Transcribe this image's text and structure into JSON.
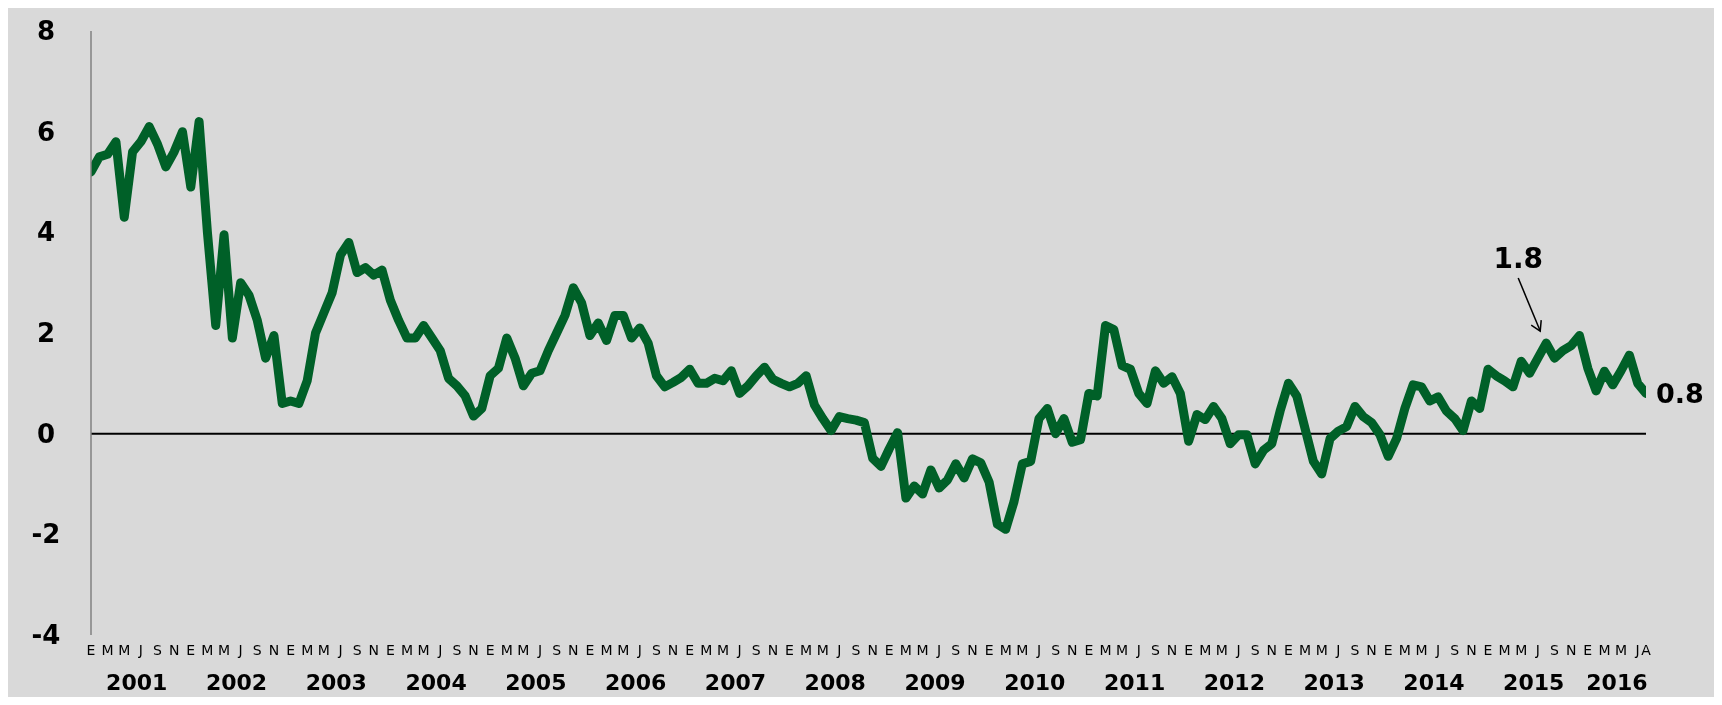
{
  "chart_data": {
    "type": "line",
    "color": "#006028",
    "categories": [
      "E",
      null,
      "M",
      null,
      "M",
      null,
      "J",
      null,
      "S",
      null,
      "N",
      null,
      "E",
      null,
      "M",
      null,
      "M",
      null,
      "J",
      null,
      "S",
      null,
      "N",
      null,
      "E",
      null,
      "M",
      null,
      "M",
      null,
      "J",
      null,
      "S",
      null,
      "N",
      null,
      "E",
      null,
      "M",
      null,
      "M",
      null,
      "J",
      null,
      "S",
      null,
      "N",
      null,
      "E",
      null,
      "M",
      null,
      "M",
      null,
      "J",
      null,
      "S",
      null,
      "N",
      null,
      "E",
      null,
      "M",
      null,
      "M",
      null,
      "J",
      null,
      "S",
      null,
      "N",
      null,
      "E",
      null,
      "M",
      null,
      "M",
      null,
      "J",
      null,
      "S",
      null,
      "N",
      null,
      "E",
      null,
      "M",
      null,
      "M",
      null,
      "J",
      null,
      "S",
      null,
      "N",
      null,
      "E",
      null,
      "M",
      null,
      "M",
      null,
      "J",
      null,
      "S",
      null,
      "N",
      null,
      "E",
      null,
      "M",
      null,
      "M",
      null,
      "J",
      null,
      "S",
      null,
      "N",
      null,
      "E",
      null,
      "M",
      null,
      "M",
      null,
      "J",
      null,
      "S",
      null,
      "N",
      null,
      "E",
      null,
      "M",
      null,
      "M",
      null,
      "J",
      null,
      "S",
      null,
      "N",
      null,
      "E",
      null,
      "M",
      null,
      "M",
      null,
      "J",
      null,
      "S",
      null,
      "N",
      null,
      "E",
      null,
      "M",
      null,
      "M",
      null,
      "J",
      null,
      "S",
      null,
      "N",
      null,
      "E",
      null,
      "M",
      null,
      "M",
      null,
      "J",
      null,
      "S",
      null,
      "N",
      null,
      "E",
      null,
      "M",
      null,
      "M",
      null,
      "J",
      "A"
    ],
    "values": [
      5.2,
      5.5,
      5.55,
      5.8,
      4.3,
      5.6,
      5.8,
      6.1,
      5.75,
      5.3,
      5.6,
      6.0,
      4.9,
      6.2,
      4.0,
      2.15,
      3.95,
      1.9,
      3.0,
      2.75,
      2.25,
      1.5,
      1.95,
      0.6,
      0.65,
      0.6,
      1.05,
      2.0,
      2.4,
      2.8,
      3.55,
      3.8,
      3.2,
      3.3,
      3.15,
      3.25,
      2.65,
      2.25,
      1.9,
      1.9,
      2.15,
      1.9,
      1.65,
      1.1,
      0.95,
      0.75,
      0.35,
      0.5,
      1.15,
      1.3,
      1.9,
      1.5,
      0.95,
      1.2,
      1.25,
      1.65,
      2.0,
      2.35,
      2.9,
      2.6,
      1.95,
      2.2,
      1.85,
      2.35,
      2.35,
      1.9,
      2.1,
      1.8,
      1.15,
      0.93,
      1.02,
      1.12,
      1.28,
      1.0,
      1.0,
      1.1,
      1.05,
      1.25,
      0.8,
      0.95,
      1.15,
      1.32,
      1.08,
      1.0,
      0.93,
      1.0,
      1.15,
      0.57,
      0.3,
      0.06,
      0.34,
      0.3,
      0.27,
      0.22,
      -0.49,
      -0.65,
      -0.3,
      0.02,
      -1.28,
      -1.04,
      -1.2,
      -0.72,
      -1.08,
      -0.92,
      -0.6,
      -0.88,
      -0.5,
      -0.58,
      -0.96,
      -1.8,
      -1.9,
      -1.35,
      -0.6,
      -0.55,
      0.3,
      0.5,
      0.0,
      0.3,
      -0.17,
      -0.12,
      0.8,
      0.75,
      2.15,
      2.07,
      1.35,
      1.28,
      0.8,
      0.6,
      1.25,
      1.0,
      1.13,
      0.8,
      -0.15,
      0.38,
      0.28,
      0.54,
      0.3,
      -0.2,
      -0.02,
      -0.02,
      -0.6,
      -0.33,
      -0.2,
      0.45,
      1.0,
      0.75,
      0.1,
      -0.55,
      -0.8,
      -0.1,
      0.05,
      0.14,
      0.54,
      0.34,
      0.22,
      -0.02,
      -0.45,
      -0.1,
      0.5,
      0.97,
      0.93,
      0.65,
      0.73,
      0.45,
      0.3,
      0.06,
      0.65,
      0.5,
      1.28,
      1.15,
      1.05,
      0.93,
      1.44,
      1.2,
      1.5,
      1.8,
      1.5,
      1.65,
      1.75,
      1.95,
      1.3,
      0.85,
      1.24,
      0.97,
      1.25,
      1.56,
      1.0,
      0.8
    ],
    "ylim": [
      -4,
      8
    ],
    "yticks": [
      -4,
      -2,
      0,
      2,
      4,
      6,
      8
    ],
    "ref_lines": [
      {
        "axis": "y",
        "value": 0,
        "color": "#000000"
      }
    ],
    "annotations": [
      "2001",
      "2002",
      "2003",
      "2004",
      "2005",
      "2006",
      "2007",
      "2008",
      "2009",
      "2010",
      "2011",
      "2012",
      "2013",
      "2014",
      "2015",
      "2016",
      "1.8",
      "0.8"
    ]
  }
}
